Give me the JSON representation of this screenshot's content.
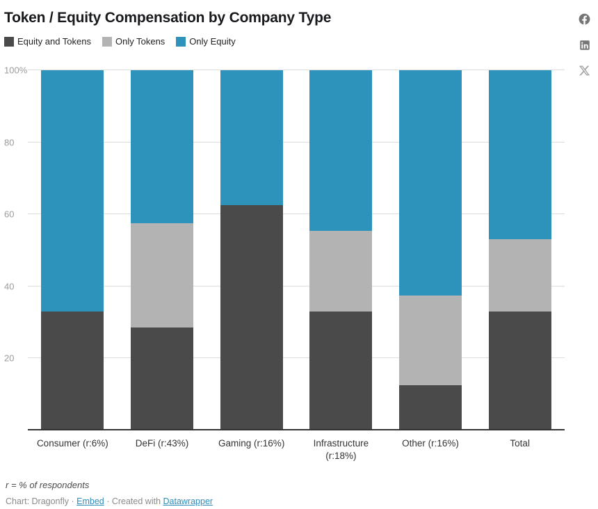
{
  "header": {
    "title": "Token / Equity Compensation by Company Type"
  },
  "legend": [
    {
      "label": "Equity and Tokens",
      "color": "#4a4a4a"
    },
    {
      "label": "Only Tokens",
      "color": "#b3b3b3"
    },
    {
      "label": "Only Equity",
      "color": "#2e93ba"
    }
  ],
  "chart_data": {
    "type": "bar",
    "stacked": true,
    "title": "Token / Equity Compensation by Company Type",
    "xlabel": "",
    "ylabel": "",
    "ylim": [
      0,
      100
    ],
    "grid": true,
    "legend_position": "top",
    "yticks": [
      20,
      40,
      60,
      80,
      100
    ],
    "ytick_labels": [
      "20",
      "40",
      "60",
      "80",
      "100%"
    ],
    "categories": [
      "Consumer (r:6%)",
      "DeFi (r:43%)",
      "Gaming (r:16%)",
      "Infrastructure (r:18%)",
      "Other (r:16%)",
      "Total"
    ],
    "series": [
      {
        "name": "Equity and Tokens",
        "color": "#4a4a4a",
        "values": [
          33,
          28.5,
          62.5,
          33,
          12.5,
          33
        ]
      },
      {
        "name": "Only Tokens",
        "color": "#b3b3b3",
        "values": [
          0,
          29,
          0,
          22.5,
          25,
          20
        ]
      },
      {
        "name": "Only Equity",
        "color": "#2e93ba",
        "values": [
          67,
          42.5,
          37.5,
          44.5,
          62.5,
          47
        ]
      }
    ]
  },
  "footer": {
    "note": "r = % of respondents",
    "attribution_prefix": "Chart: Dragonfly · ",
    "embed_link": "Embed",
    "attribution_middle": " · Created with ",
    "datawrapper_link": "Datawrapper"
  },
  "social": {
    "facebook": "Share on Facebook",
    "linkedin": "Share on LinkedIn",
    "x": "Share on X"
  }
}
